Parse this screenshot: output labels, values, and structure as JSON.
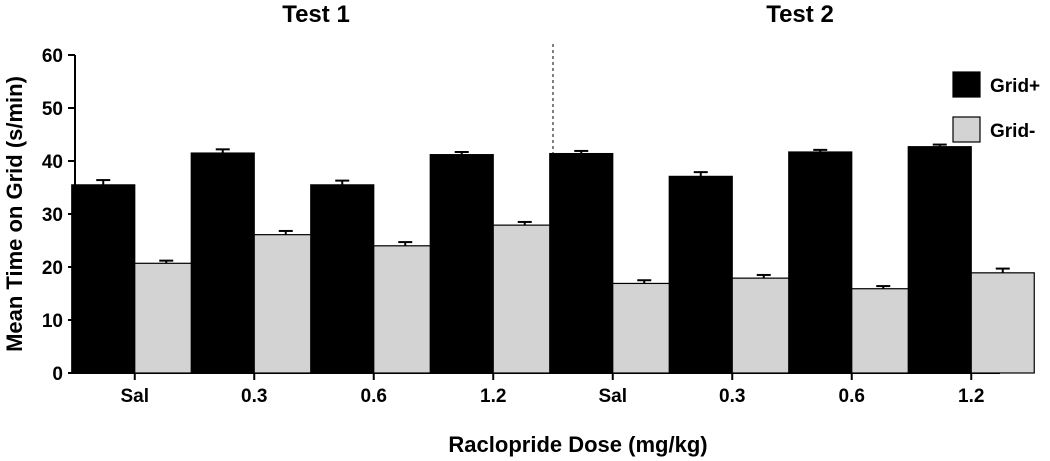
{
  "chart_data": {
    "type": "bar",
    "panels": [
      {
        "title": "Test 1",
        "categories": [
          "Sal",
          "0.3",
          "0.6",
          "1.2"
        ],
        "series": [
          {
            "name": "Grid+",
            "values": [
              35.5,
              41.5,
              35.5,
              41.2
            ],
            "errors": [
              0.9,
              0.7,
              0.8,
              0.5
            ]
          },
          {
            "name": "Grid-",
            "values": [
              20.7,
              26.1,
              24.0,
              27.9
            ],
            "errors": [
              0.5,
              0.7,
              0.7,
              0.6
            ]
          }
        ]
      },
      {
        "title": "Test 2",
        "categories": [
          "Sal",
          "0.3",
          "0.6",
          "1.2"
        ],
        "series": [
          {
            "name": "Grid+",
            "values": [
              41.4,
              37.1,
              41.7,
              42.7
            ],
            "errors": [
              0.5,
              0.8,
              0.4,
              0.4
            ]
          },
          {
            "name": "Grid-",
            "values": [
              16.9,
              17.9,
              15.9,
              18.9
            ],
            "errors": [
              0.6,
              0.6,
              0.5,
              0.8
            ]
          }
        ]
      }
    ],
    "xlabel": "Raclopride Dose (mg/kg)",
    "ylabel": "Mean Time on Grid (s/min)",
    "ylim": [
      0,
      60
    ],
    "yticks": [
      0,
      10,
      20,
      30,
      40,
      50,
      60
    ],
    "legend_position": "right",
    "grid": false,
    "colors": {
      "Grid+": "#000000",
      "Grid-": "#d3d3d3"
    }
  }
}
